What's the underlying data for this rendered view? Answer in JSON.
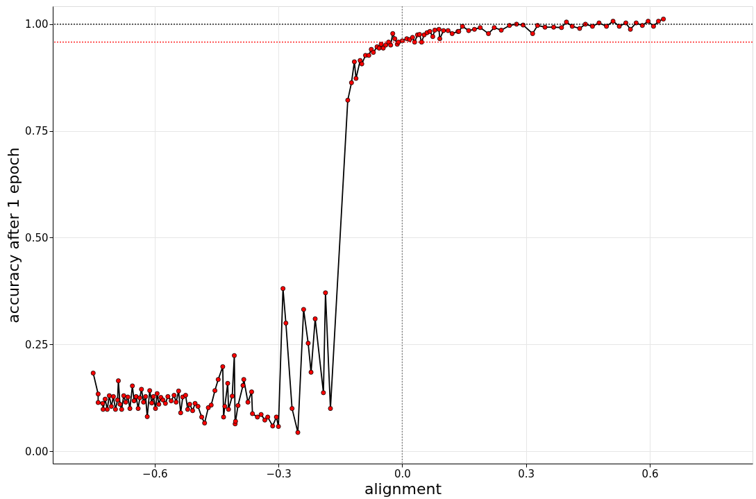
{
  "chart_data": {
    "type": "line",
    "xlabel": "alignment",
    "ylabel": "accuracy after 1 epoch",
    "xlim": [
      -0.847,
      0.849
    ],
    "ylim": [
      -0.029,
      1.042
    ],
    "xticks": [
      {
        "value": -0.6,
        "label": "−0.6"
      },
      {
        "value": -0.3,
        "label": "−0.3"
      },
      {
        "value": 0.0,
        "label": "0.0"
      },
      {
        "value": 0.3,
        "label": "0.3"
      },
      {
        "value": 0.6,
        "label": "0.6"
      }
    ],
    "yticks": [
      {
        "value": 0,
        "label": "0.00"
      },
      {
        "value": 0.25,
        "label": "0.25"
      },
      {
        "value": 0.5,
        "label": "0.50"
      },
      {
        "value": 0.75,
        "label": "0.75"
      },
      {
        "value": 1.0,
        "label": "1.00"
      }
    ],
    "grid": true,
    "marker": "circle",
    "line_style": "solid",
    "ref_lines": [
      {
        "axis": "y",
        "value": 1.0,
        "color": "#000000",
        "line_style": "dotted"
      },
      {
        "axis": "y",
        "value": 0.958,
        "color": "#ff0000",
        "line_style": "dotted"
      },
      {
        "axis": "x",
        "value": 0.0,
        "color": "#808080",
        "line_style": "dotted"
      }
    ],
    "series": [
      {
        "color": "#ff0000",
        "x": [
          -0.749,
          -0.737,
          -0.737,
          -0.726,
          -0.725,
          -0.72,
          -0.715,
          -0.71,
          -0.705,
          -0.7,
          -0.695,
          -0.69,
          -0.688,
          -0.684,
          -0.68,
          -0.675,
          -0.67,
          -0.665,
          -0.66,
          -0.654,
          -0.65,
          -0.645,
          -0.64,
          -0.636,
          -0.632,
          -0.627,
          -0.622,
          -0.618,
          -0.612,
          -0.607,
          -0.603,
          -0.598,
          -0.594,
          -0.59,
          -0.585,
          -0.58,
          -0.574,
          -0.568,
          -0.56,
          -0.553,
          -0.548,
          -0.542,
          -0.537,
          -0.532,
          -0.525,
          -0.52,
          -0.515,
          -0.508,
          -0.502,
          -0.495,
          -0.486,
          -0.479,
          -0.47,
          -0.463,
          -0.454,
          -0.446,
          -0.435,
          -0.433,
          -0.43,
          -0.423,
          -0.421,
          -0.412,
          -0.407,
          -0.405,
          -0.404,
          -0.398,
          -0.386,
          -0.384,
          -0.374,
          -0.365,
          -0.363,
          -0.351,
          -0.342,
          -0.333,
          -0.326,
          -0.314,
          -0.305,
          -0.3,
          -0.289,
          -0.282,
          -0.267,
          -0.253,
          -0.239,
          -0.228,
          -0.221,
          -0.211,
          -0.191,
          -0.186,
          -0.174,
          -0.132,
          -0.123,
          -0.116,
          -0.112,
          -0.102,
          -0.098,
          -0.089,
          -0.081,
          -0.075,
          -0.07,
          -0.061,
          -0.056,
          -0.051,
          -0.046,
          -0.04,
          -0.033,
          -0.028,
          -0.023,
          -0.018,
          -0.012,
          -0.009,
          0.0,
          0.011,
          0.018,
          0.025,
          0.03,
          0.037,
          0.042,
          0.047,
          0.053,
          0.06,
          0.067,
          0.074,
          0.079,
          0.089,
          0.091,
          0.1,
          0.111,
          0.121,
          0.135,
          0.137,
          0.146,
          0.161,
          0.175,
          0.189,
          0.209,
          0.223,
          0.24,
          0.26,
          0.277,
          0.293,
          0.316,
          0.328,
          0.346,
          0.367,
          0.386,
          0.398,
          0.412,
          0.43,
          0.444,
          0.461,
          0.477,
          0.495,
          0.511,
          0.526,
          0.542,
          0.553,
          0.567,
          0.582,
          0.596,
          0.609,
          0.621,
          0.633
        ],
        "values": [
          0.183,
          0.134,
          0.114,
          0.112,
          0.098,
          0.122,
          0.098,
          0.13,
          0.105,
          0.128,
          0.098,
          0.12,
          0.165,
          0.11,
          0.098,
          0.13,
          0.115,
          0.127,
          0.1,
          0.153,
          0.118,
          0.128,
          0.1,
          0.125,
          0.145,
          0.115,
          0.128,
          0.081,
          0.142,
          0.113,
          0.128,
          0.1,
          0.135,
          0.11,
          0.126,
          0.12,
          0.112,
          0.128,
          0.118,
          0.131,
          0.115,
          0.141,
          0.09,
          0.127,
          0.131,
          0.098,
          0.11,
          0.095,
          0.112,
          0.105,
          0.08,
          0.066,
          0.102,
          0.108,
          0.142,
          0.168,
          0.198,
          0.08,
          0.105,
          0.159,
          0.098,
          0.129,
          0.224,
          0.064,
          0.07,
          0.107,
          0.154,
          0.168,
          0.115,
          0.139,
          0.088,
          0.08,
          0.086,
          0.073,
          0.08,
          0.059,
          0.08,
          0.058,
          0.381,
          0.3,
          0.1,
          0.044,
          0.332,
          0.253,
          0.185,
          0.31,
          0.137,
          0.371,
          0.1,
          0.822,
          0.863,
          0.912,
          0.873,
          0.915,
          0.907,
          0.927,
          0.927,
          0.941,
          0.934,
          0.947,
          0.944,
          0.953,
          0.944,
          0.951,
          0.958,
          0.951,
          0.978,
          0.966,
          0.953,
          0.958,
          0.961,
          0.966,
          0.964,
          0.969,
          0.958,
          0.975,
          0.976,
          0.958,
          0.975,
          0.98,
          0.983,
          0.971,
          0.986,
          0.988,
          0.966,
          0.985,
          0.985,
          0.978,
          0.983,
          0.983,
          0.995,
          0.985,
          0.988,
          0.992,
          0.978,
          0.992,
          0.986,
          0.997,
          1.0,
          0.998,
          0.978,
          0.997,
          0.993,
          0.993,
          0.992,
          1.005,
          0.995,
          0.99,
          1.0,
          0.995,
          1.003,
          0.995,
          1.007,
          0.995,
          1.003,
          0.988,
          1.003,
          0.997,
          1.007,
          0.995,
          1.007,
          1.012
        ]
      }
    ]
  }
}
